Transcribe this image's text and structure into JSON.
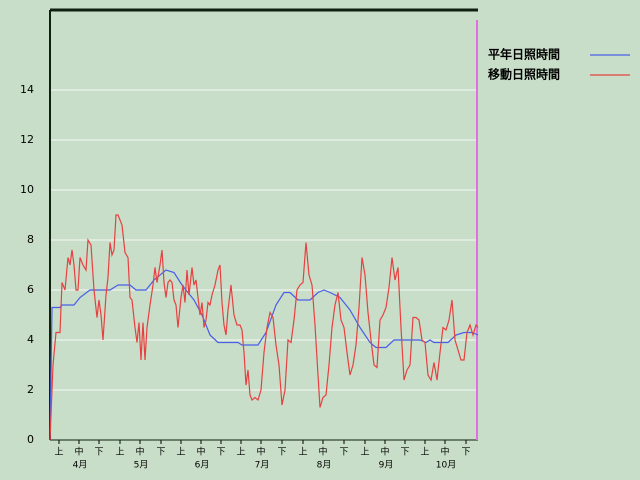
{
  "chart_data": {
    "type": "line",
    "series": [
      {
        "name": "平年日照時間",
        "color": "#4a5ee8",
        "x": [
          0,
          1,
          5,
          6,
          12,
          15,
          20,
          30,
          34,
          40,
          43,
          48,
          52,
          58,
          62,
          66,
          72,
          76,
          80,
          84,
          94,
          96,
          104,
          108,
          113,
          117,
          120,
          124,
          130,
          134,
          137,
          140,
          145,
          150,
          155,
          160,
          163,
          168,
          172,
          185,
          188,
          190,
          192,
          199,
          203,
          207,
          211,
          214
        ],
        "values": [
          0,
          5.3,
          5.3,
          5.4,
          5.4,
          5.7,
          6,
          6,
          6.2,
          6.2,
          6,
          6,
          6.4,
          6.8,
          6.7,
          6.2,
          5.6,
          5,
          4.2,
          3.9,
          3.9,
          3.8,
          3.8,
          4.3,
          5.4,
          5.9,
          5.9,
          5.6,
          5.6,
          5.9,
          6,
          5.9,
          5.7,
          5.2,
          4.5,
          3.9,
          3.7,
          3.7,
          4,
          4,
          3.9,
          4,
          3.9,
          3.9,
          4.2,
          4.3,
          4.3,
          4.2
        ]
      },
      {
        "name": "移動日照時間",
        "color": "#e84040",
        "x": [
          0,
          1.5,
          3,
          5,
          6,
          7.5,
          9,
          10,
          11,
          12,
          13,
          14,
          15,
          16.5,
          18,
          19,
          20.5,
          22,
          23.5,
          24.5,
          25.5,
          26.5,
          28,
          29,
          30,
          31,
          32,
          33,
          34,
          36,
          37.5,
          39,
          40,
          41,
          42.5,
          43.5,
          44.5,
          45.5,
          46.5,
          47.5,
          48.5,
          50,
          51.5,
          52.5,
          53.5,
          55,
          56,
          57,
          58,
          59,
          60,
          61,
          62,
          63,
          64,
          65.5,
          66.5,
          67.5,
          68.5,
          69.5,
          71,
          72,
          73,
          74,
          75,
          76,
          77,
          78,
          79,
          80,
          81,
          82.5,
          84,
          85,
          86,
          87,
          88,
          89,
          90.5,
          92,
          93.5,
          95,
          96,
          97,
          98,
          99,
          100,
          101,
          102.5,
          104,
          105.5,
          107,
          108.5,
          110,
          111.5,
          113,
          114.5,
          116,
          117.5,
          119,
          120.5,
          122,
          123.5,
          125,
          126.5,
          128,
          129.5,
          131,
          132.5,
          134,
          135,
          136.5,
          138,
          139.5,
          141,
          142.5,
          144,
          145.5,
          147,
          148.5,
          150,
          151.5,
          153,
          154.5,
          156,
          157.5,
          159,
          160.5,
          162,
          163.5,
          165,
          166.5,
          168,
          169.5,
          171,
          172.5,
          174,
          175.5,
          177,
          178.5,
          180,
          181.5,
          183,
          184.5,
          186,
          187.5,
          189,
          190.5,
          192,
          193.5,
          195,
          196.5,
          198,
          199.5,
          201,
          202.5,
          204,
          205.5,
          207,
          208.5,
          210,
          211.5,
          213,
          214
        ],
        "values": [
          0,
          3,
          4.3,
          4.3,
          6.3,
          6,
          7.3,
          7,
          7.6,
          7,
          6,
          6,
          7.3,
          7,
          6.8,
          8,
          7.8,
          6,
          4.9,
          5.6,
          5,
          4,
          5.8,
          6.5,
          7.9,
          7.4,
          7.6,
          9,
          9,
          8.6,
          7.5,
          7.3,
          5.7,
          5.6,
          4.5,
          3.9,
          4.7,
          3.2,
          4.7,
          3.2,
          4.5,
          5.4,
          6.2,
          6.9,
          6.3,
          7,
          7.6,
          6.3,
          5.7,
          6.3,
          6.4,
          6.3,
          5.6,
          5.4,
          4.5,
          5.7,
          6.2,
          5.5,
          6.8,
          5.8,
          6.9,
          6.2,
          6.4,
          5.7,
          5,
          5.5,
          4.5,
          4.8,
          5.5,
          5.4,
          5.8,
          6.2,
          6.8,
          7,
          5.5,
          4.6,
          4.2,
          5.2,
          6.2,
          5,
          4.6,
          4.6,
          4.4,
          3.5,
          2.2,
          2.8,
          1.8,
          1.6,
          1.7,
          1.6,
          2,
          3.5,
          4.5,
          5.1,
          4.9,
          3.8,
          3,
          1.4,
          2,
          4,
          3.9,
          4.8,
          6,
          6.2,
          6.3,
          7.9,
          6.6,
          6.2,
          4.6,
          2.6,
          1.3,
          1.7,
          1.8,
          3,
          4.5,
          5.4,
          5.9,
          4.8,
          4.5,
          3.5,
          2.6,
          3,
          3.8,
          5.3,
          7.3,
          6.6,
          5.1,
          4,
          3,
          2.9,
          4.8,
          5,
          5.3,
          6.1,
          7.3,
          6.4,
          6.9,
          4.5,
          2.4,
          2.8,
          3,
          4.9,
          4.9,
          4.8,
          4,
          3.9,
          2.6,
          2.4,
          3.1,
          2.4,
          3.5,
          4.5,
          4.4,
          4.8,
          5.6,
          4,
          3.6,
          3.2,
          3.2,
          4.3,
          4.6,
          4.2,
          4.6,
          4.5
        ]
      }
    ],
    "xlim": [
      0,
      214
    ],
    "ylim": [
      0,
      17.2
    ],
    "yticks": [
      0,
      2,
      4,
      6,
      8,
      10,
      12,
      14
    ],
    "xticks": [
      {
        "value": 4.5,
        "label": "上"
      },
      {
        "value": 14.5,
        "label": "中"
      },
      {
        "value": 24.5,
        "label": "下"
      },
      {
        "value": 35,
        "label": "上"
      },
      {
        "value": 45,
        "label": "中"
      },
      {
        "value": 55.5,
        "label": "下"
      },
      {
        "value": 65.5,
        "label": "上"
      },
      {
        "value": 75.5,
        "label": "中"
      },
      {
        "value": 85.5,
        "label": "下"
      },
      {
        "value": 95.5,
        "label": "上"
      },
      {
        "value": 105.5,
        "label": "中"
      },
      {
        "value": 116,
        "label": "下"
      },
      {
        "value": 126.5,
        "label": "上"
      },
      {
        "value": 136.5,
        "label": "中"
      },
      {
        "value": 147,
        "label": "下"
      },
      {
        "value": 157.5,
        "label": "上"
      },
      {
        "value": 167.5,
        "label": "中"
      },
      {
        "value": 177.5,
        "label": "下"
      },
      {
        "value": 187.5,
        "label": "上"
      },
      {
        "value": 197.5,
        "label": "中"
      },
      {
        "value": 208,
        "label": "下"
      }
    ],
    "month_ticks": [
      {
        "value": 15,
        "label": "4月"
      },
      {
        "value": 45.5,
        "label": "5月"
      },
      {
        "value": 76,
        "label": "6月"
      },
      {
        "value": 106,
        "label": "7月"
      },
      {
        "value": 137,
        "label": "8月"
      },
      {
        "value": 168,
        "label": "9月"
      },
      {
        "value": 198,
        "label": "10月"
      }
    ],
    "grid": true
  }
}
